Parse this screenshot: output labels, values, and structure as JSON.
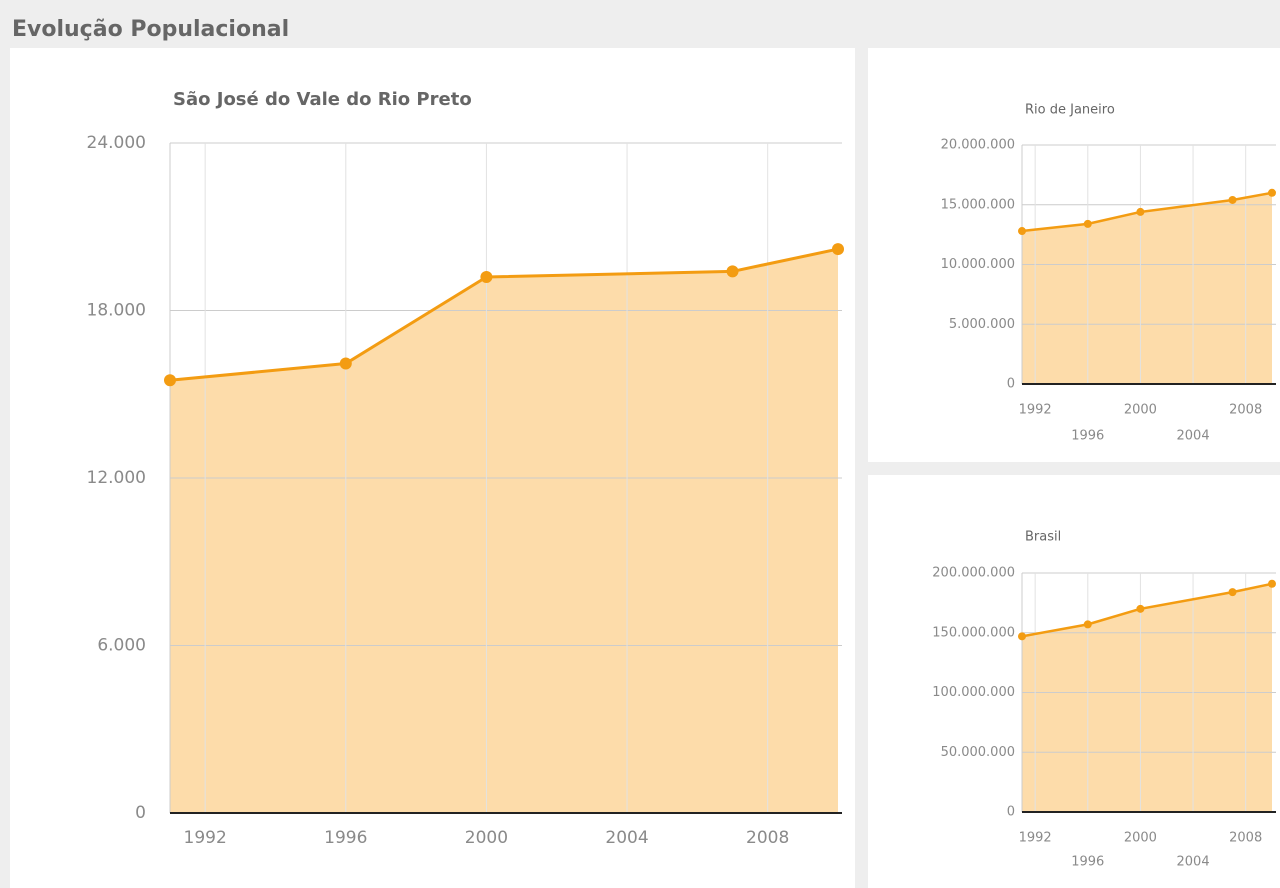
{
  "header": {
    "title": "Evolução Populacional"
  },
  "chart_data": [
    {
      "type": "area",
      "title": "São José do Vale do Rio Preto",
      "color": "#f39c12",
      "fill": "#fddcaa",
      "grid": true,
      "x": [
        1991,
        1996,
        2000,
        2007,
        2010
      ],
      "values": [
        15500,
        16100,
        19200,
        19400,
        20200
      ],
      "xlim": [
        1991,
        2010
      ],
      "xticks": [
        1992,
        1996,
        2000,
        2004,
        2008
      ],
      "ylim": [
        0,
        24000
      ],
      "yticks": [
        0,
        {
          "value": 6000,
          "label": "6.000"
        },
        {
          "value": 12000,
          "label": "12.000"
        },
        {
          "value": 18000,
          "label": "18.000"
        },
        {
          "value": 24000,
          "label": "24.000"
        }
      ]
    },
    {
      "type": "area",
      "title": "Rio de Janeiro",
      "color": "#f39c12",
      "fill": "#fddcaa",
      "grid": true,
      "x": [
        1991,
        1996,
        2000,
        2007,
        2010
      ],
      "values": [
        12800000,
        13400000,
        14400000,
        15400000,
        16000000
      ],
      "xlim": [
        1991,
        2010
      ],
      "xticks": [
        1992,
        1996,
        2000,
        2004,
        2008
      ],
      "ylim": [
        0,
        20000000
      ],
      "yticks": [
        0,
        {
          "value": 5000000,
          "label": "5.000.000"
        },
        {
          "value": 10000000,
          "label": "10.000.000"
        },
        {
          "value": 15000000,
          "label": "15.000.000"
        },
        {
          "value": 20000000,
          "label": "20.000.000"
        }
      ]
    },
    {
      "type": "area",
      "title": "Brasil",
      "color": "#f39c12",
      "fill": "#fddcaa",
      "grid": true,
      "x": [
        1991,
        1996,
        2000,
        2007,
        2010
      ],
      "values": [
        147000000,
        157000000,
        170000000,
        184000000,
        191000000
      ],
      "xlim": [
        1991,
        2010
      ],
      "xticks": [
        1992,
        1996,
        2000,
        2004,
        2008
      ],
      "ylim": [
        0,
        200000000
      ],
      "yticks": [
        0,
        {
          "value": 50000000,
          "label": "50.000.000"
        },
        {
          "value": 100000000,
          "label": "100.000.000"
        },
        {
          "value": 150000000,
          "label": "150.000.000"
        },
        {
          "value": 200000000,
          "label": "200.000.000"
        }
      ]
    }
  ]
}
